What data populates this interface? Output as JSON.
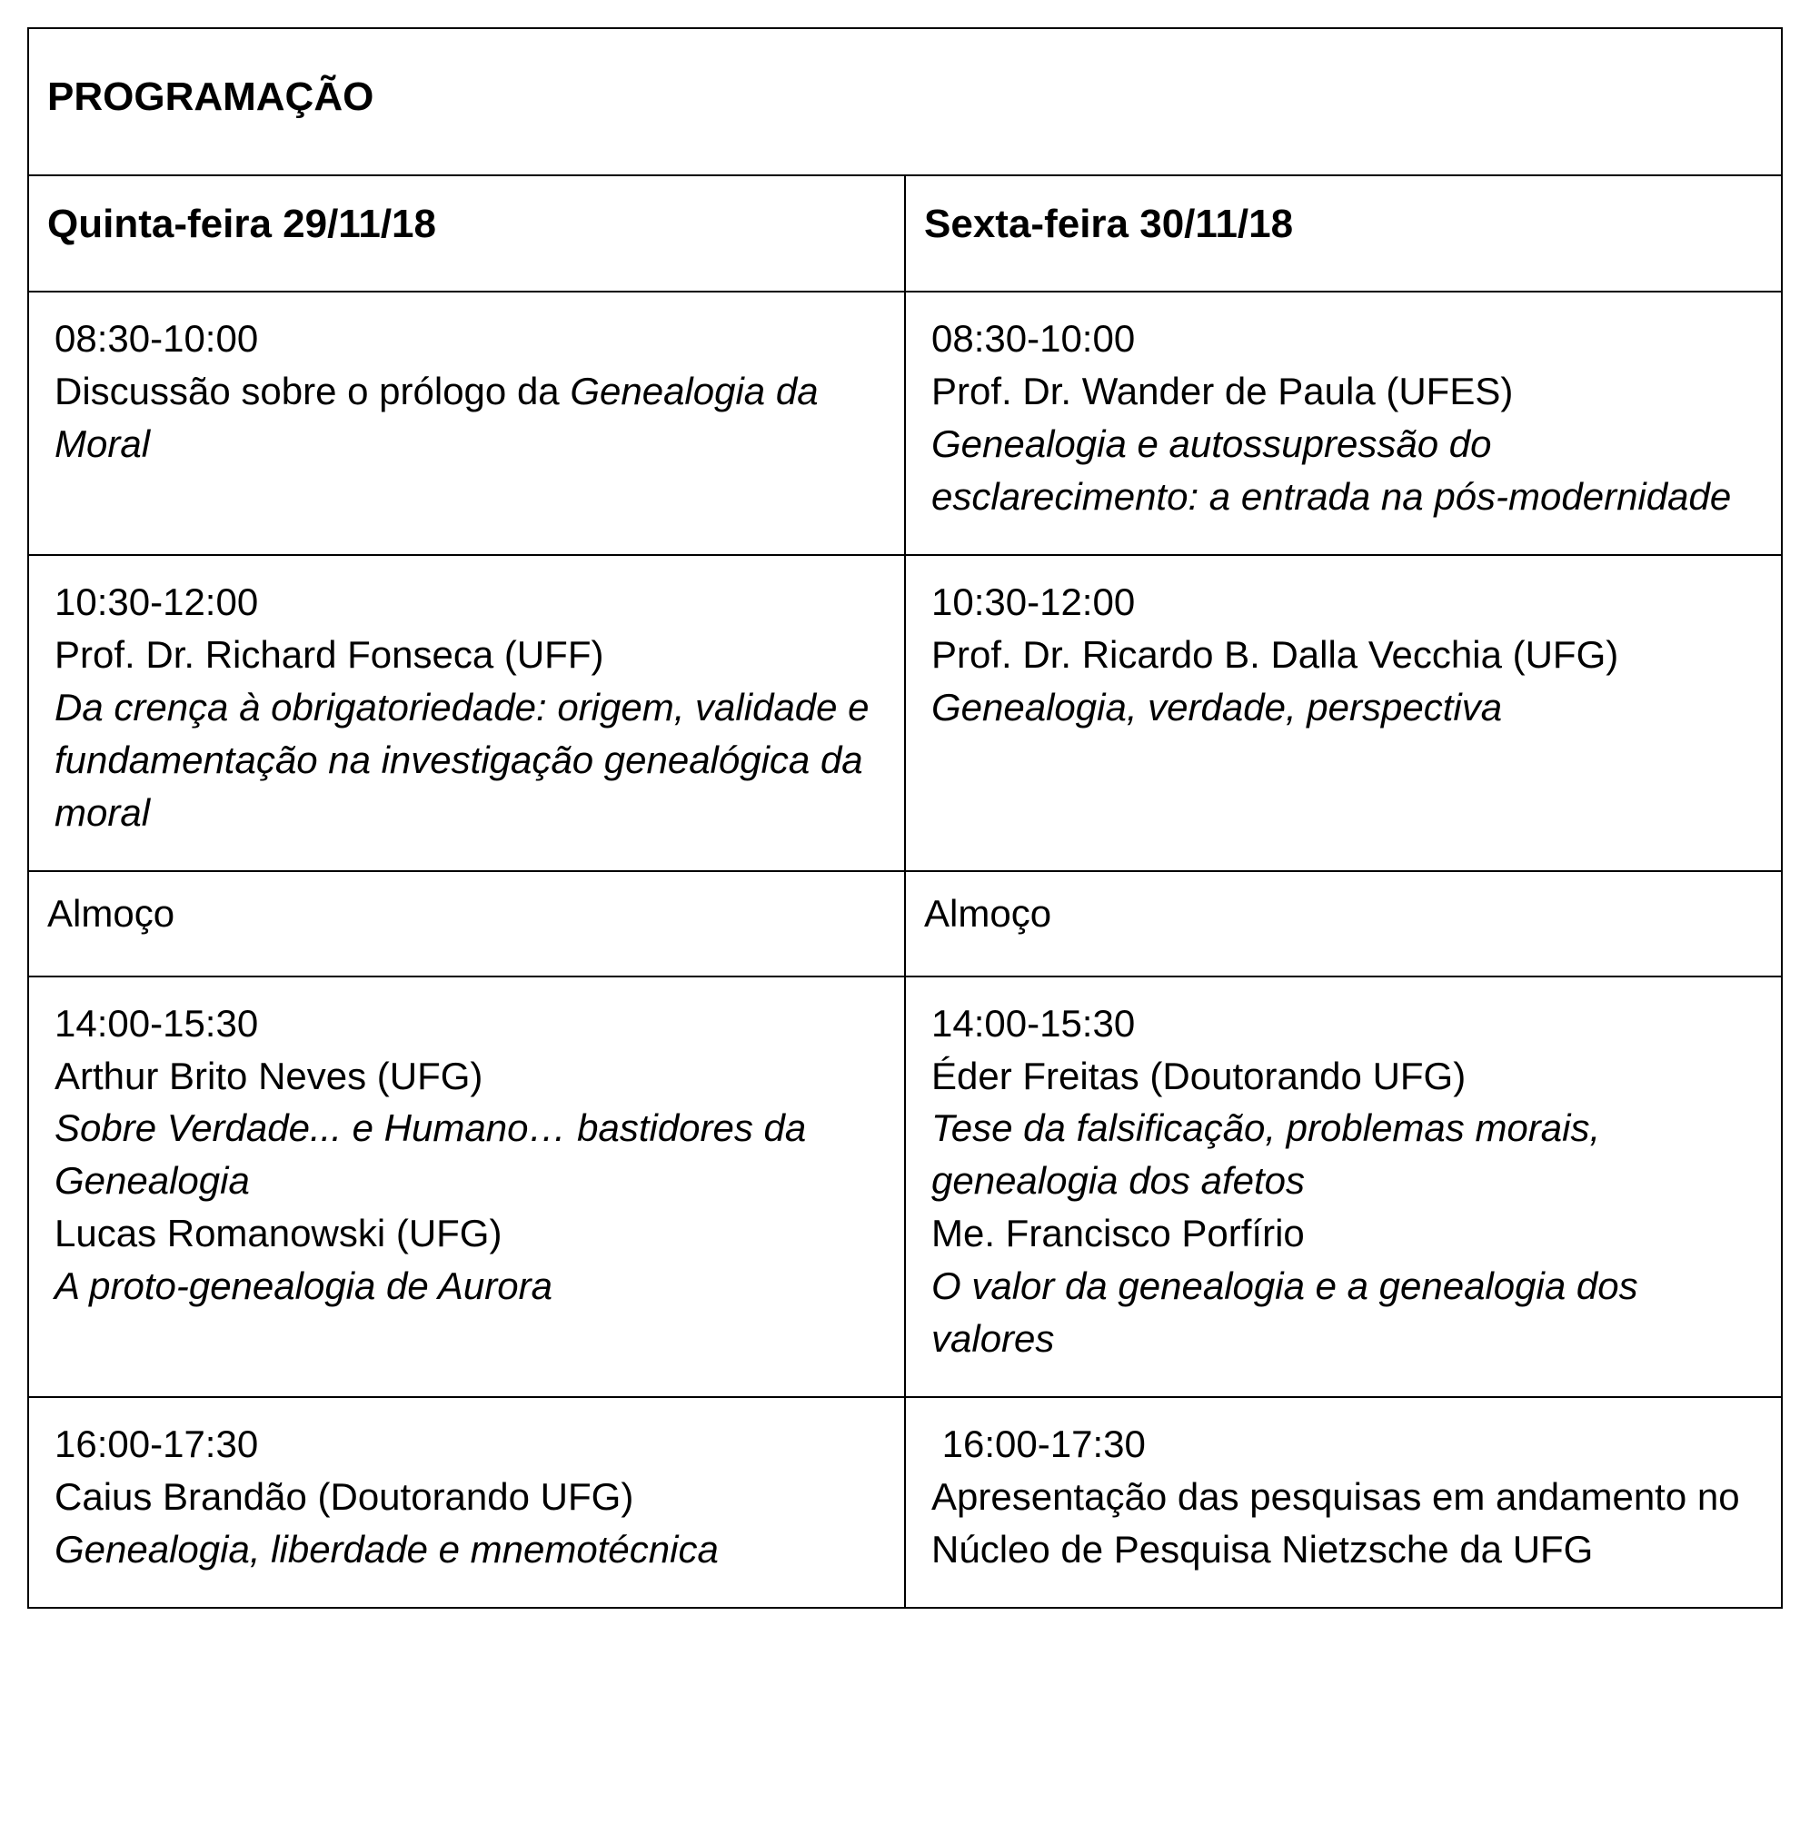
{
  "title": "PROGRAMAÇÃO",
  "day1": {
    "header": "Quinta-feira 29/11/18",
    "slot1": {
      "time": "08:30-10:00",
      "line1_plain": "Discussão sobre o prólogo da ",
      "line1_italic": "Genealogia da Moral"
    },
    "slot2": {
      "time": "10:30-12:00",
      "speaker": "Prof. Dr. Richard Fonseca (UFF)",
      "talk": "Da crença à obrigatoriedade: origem, validade e fundamentação na investigação genealógica da moral"
    },
    "lunch": "Almoço",
    "slot3": {
      "time": "14:00-15:30",
      "speaker1": "Arthur Brito Neves (UFG)",
      "talk1": "Sobre Verdade... e Humano… bastidores da Genealogia",
      "speaker2": "Lucas Romanowski (UFG)",
      "talk2": "A proto-genealogia de Aurora"
    },
    "slot4": {
      "time": "16:00-17:30",
      "speaker": "Caius Brandão (Doutorando UFG)",
      "talk": "Genealogia, liberdade e mnemotécnica"
    }
  },
  "day2": {
    "header": "Sexta-feira 30/11/18",
    "slot1": {
      "time": "08:30-10:00",
      "speaker": "Prof. Dr. Wander de Paula (UFES)",
      "talk": "Genealogia e autossupressão do esclarecimento: a entrada na pós-modernidade"
    },
    "slot2": {
      "time": "10:30-12:00",
      "speaker": "Prof. Dr. Ricardo B. Dalla Vecchia (UFG)",
      "talk": "Genealogia, verdade, perspectiva"
    },
    "lunch": "Almoço",
    "slot3": {
      "time": "14:00-15:30",
      "speaker1": "Éder Freitas (Doutorando UFG)",
      "talk1": "Tese da falsificação, problemas morais, genealogia dos afetos",
      "speaker2": "Me. Francisco Porfírio",
      "talk2": "O valor da genealogia e a genealogia dos valores"
    },
    "slot4": {
      "time": " 16:00-17:30",
      "plain": "Apresentação das pesquisas em andamento no Núcleo de Pesquisa Nietzsche da UFG"
    }
  }
}
